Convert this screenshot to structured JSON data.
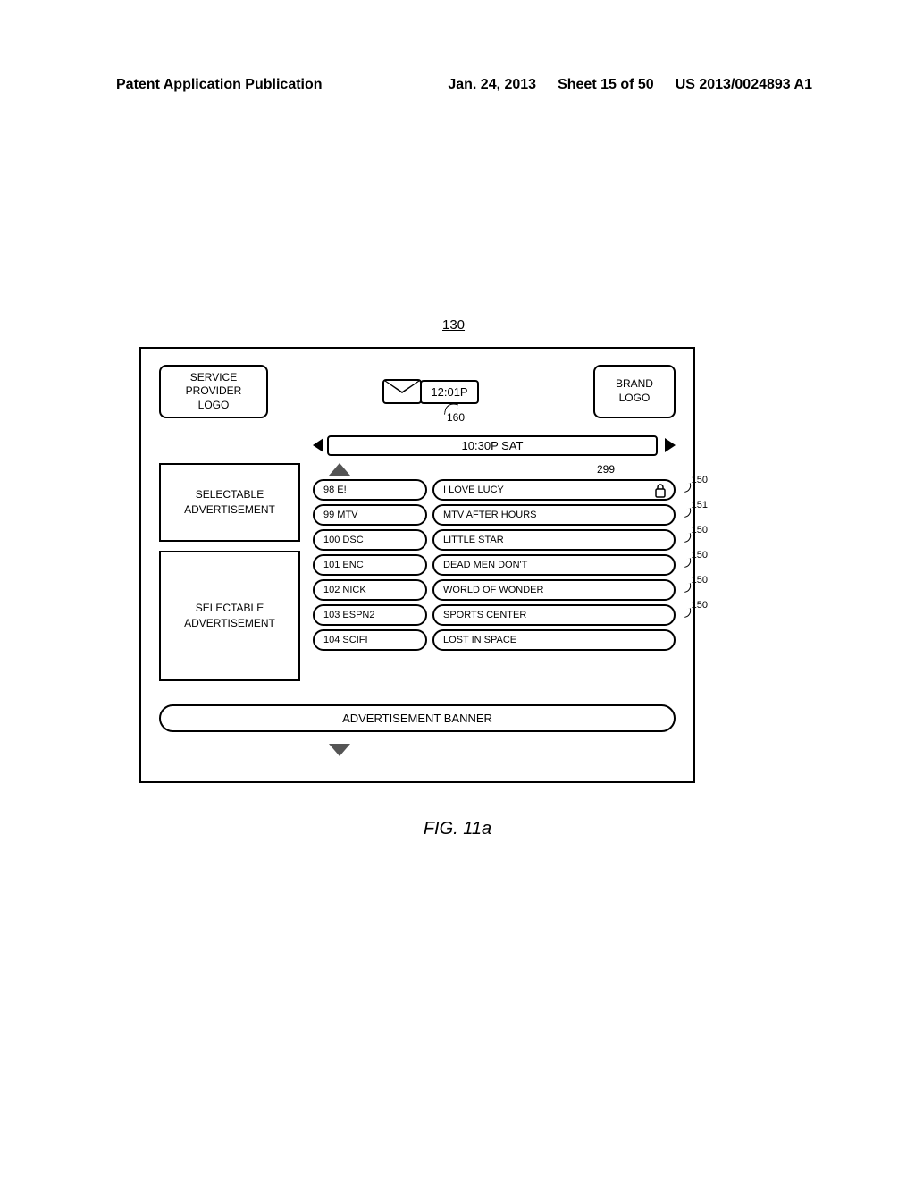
{
  "header": {
    "left": "Patent Application Publication",
    "date": "Jan. 24, 2013",
    "sheet": "Sheet 15 of 50",
    "pub_no": "US 2013/0024893 A1"
  },
  "figure_number": "130",
  "service_logo": "SERVICE\nPROVIDER\nLOGO",
  "brand_logo": "BRAND\nLOGO",
  "clock_time": "12:01P",
  "ref_160": "160",
  "time_nav_label": "10:30P SAT",
  "ad1": "SELECTABLE\nADVERTISEMENT",
  "ad2": "SELECTABLE\nADVERTISEMENT",
  "scroll_top_label": "299",
  "rows": [
    {
      "channel": "98 E!",
      "program": "I LOVE LUCY",
      "locked": true,
      "ref": "150"
    },
    {
      "channel": "99 MTV",
      "program": "MTV AFTER HOURS",
      "locked": false,
      "ref": "151"
    },
    {
      "channel": "100 DSC",
      "program": "LITTLE STAR",
      "locked": false,
      "ref": "150"
    },
    {
      "channel": "101 ENC",
      "program": "DEAD MEN DON'T",
      "locked": false,
      "ref": "150"
    },
    {
      "channel": "102 NICK",
      "program": "WORLD OF WONDER",
      "locked": false,
      "ref": "150"
    },
    {
      "channel": "103 ESPN2",
      "program": "SPORTS CENTER",
      "locked": false,
      "ref": "150"
    },
    {
      "channel": "104 SCIFI",
      "program": "LOST IN SPACE",
      "locked": false,
      "ref": "150"
    }
  ],
  "ad_banner": "ADVERTISEMENT BANNER",
  "figure_caption": "FIG. 11a",
  "colors": {
    "border": "#000000",
    "background": "#ffffff",
    "hatched_arrow": "#555555"
  },
  "typography": {
    "header_fontsize": 16,
    "body_fontsize": 12,
    "caption_fontsize": 20
  }
}
